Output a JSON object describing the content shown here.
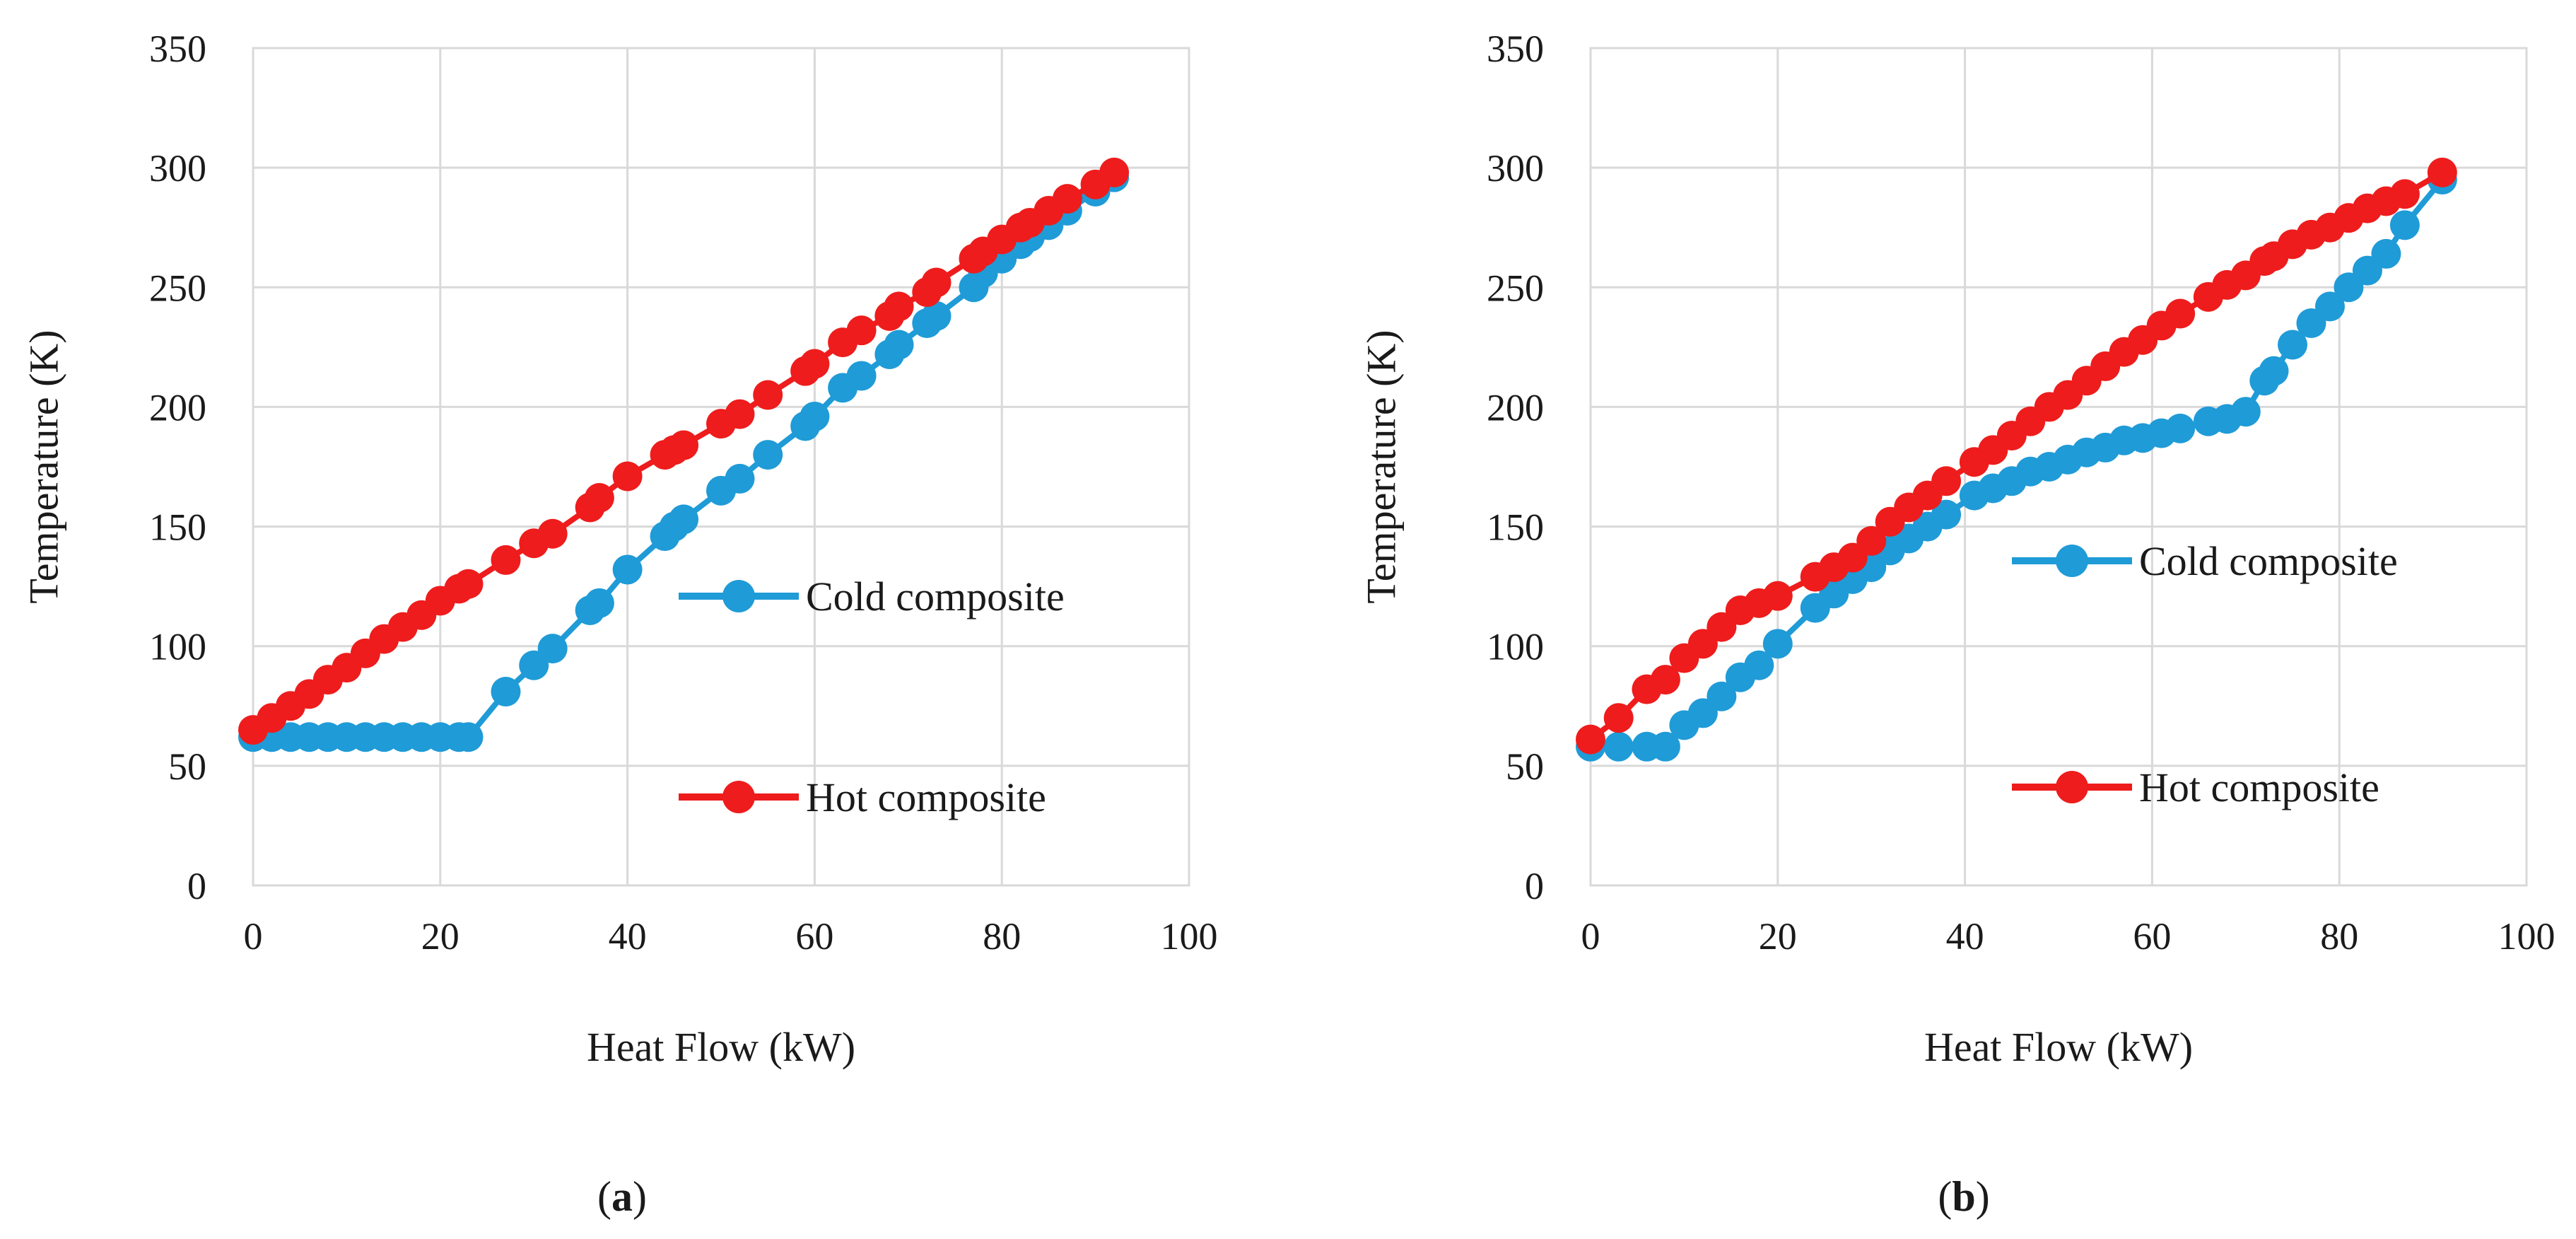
{
  "chart_data": [
    {
      "type": "line",
      "panel_label_prefix": "(",
      "panel_letter": "a",
      "panel_label_suffix": ")",
      "xlabel": "Heat Flow (kW)",
      "ylabel": "Temperature (K)",
      "xlim": [
        0,
        100
      ],
      "ylim": [
        0,
        350
      ],
      "xticks": [
        "0",
        "20",
        "40",
        "60",
        "80",
        "100"
      ],
      "yticks": [
        "0",
        "50",
        "100",
        "150",
        "200",
        "250",
        "300",
        "350"
      ],
      "grid": true,
      "legend": "right, mid-height (stacked, gap between entries)",
      "series": [
        {
          "name": "Cold composite",
          "color": "#1f9bd7",
          "x": [
            0,
            2,
            4,
            6,
            8,
            10,
            12,
            14,
            16,
            18,
            20,
            22,
            23,
            27,
            30,
            32,
            36,
            37,
            40,
            44,
            45,
            46,
            50,
            52,
            55,
            59,
            60,
            63,
            65,
            68,
            69,
            72,
            73,
            77,
            78,
            80,
            82,
            83,
            85,
            87,
            90,
            92
          ],
          "y": [
            62,
            62,
            62,
            62,
            62,
            62,
            62,
            62,
            62,
            62,
            62,
            62,
            62,
            81,
            92,
            99,
            115,
            118,
            132,
            146,
            150,
            153,
            165,
            170,
            180,
            192,
            196,
            208,
            213,
            222,
            226,
            235,
            238,
            250,
            256,
            262,
            268,
            271,
            276,
            282,
            290,
            296
          ]
        },
        {
          "name": "Hot composite",
          "color": "#ee1c1c",
          "x": [
            0,
            2,
            4,
            6,
            8,
            10,
            12,
            14,
            16,
            18,
            20,
            22,
            23,
            27,
            30,
            32,
            36,
            37,
            40,
            44,
            45,
            46,
            50,
            52,
            55,
            59,
            60,
            63,
            65,
            68,
            69,
            72,
            73,
            77,
            78,
            80,
            82,
            83,
            85,
            87,
            90,
            92
          ],
          "y": [
            65,
            70,
            75,
            80,
            86,
            91,
            97,
            103,
            108,
            113,
            119,
            124,
            126,
            136,
            143,
            147,
            158,
            162,
            171,
            180,
            182,
            184,
            193,
            197,
            205,
            215,
            218,
            227,
            232,
            238,
            242,
            248,
            252,
            262,
            265,
            270,
            275,
            277,
            282,
            287,
            293,
            298
          ]
        }
      ]
    },
    {
      "type": "line",
      "panel_label_prefix": "(",
      "panel_letter": "b",
      "panel_label_suffix": ")",
      "xlabel": "Heat Flow (kW)",
      "ylabel": "Temperature (K)",
      "xlim": [
        0,
        100
      ],
      "ylim": [
        0,
        350
      ],
      "xticks": [
        "0",
        "20",
        "40",
        "60",
        "80",
        "100"
      ],
      "yticks": [
        "0",
        "50",
        "100",
        "150",
        "200",
        "250",
        "300",
        "350"
      ],
      "grid": true,
      "legend": "right, mid-height (stacked, gap between entries)",
      "series": [
        {
          "name": "Cold composite",
          "color": "#1f9bd7",
          "x": [
            0,
            3,
            6,
            8,
            10,
            12,
            14,
            16,
            18,
            20,
            24,
            26,
            28,
            30,
            32,
            34,
            36,
            38,
            41,
            43,
            45,
            47,
            49,
            51,
            53,
            55,
            57,
            59,
            61,
            63,
            66,
            68,
            70,
            72,
            73,
            75,
            77,
            79,
            81,
            83,
            85,
            87,
            91
          ],
          "y": [
            58,
            58,
            58,
            58,
            67,
            72,
            79,
            87,
            92,
            101,
            116,
            122,
            128,
            133,
            140,
            145,
            150,
            155,
            163,
            166,
            169,
            173,
            175,
            178,
            181,
            183,
            186,
            187,
            189,
            191,
            194,
            195,
            198,
            211,
            215,
            226,
            235,
            242,
            250,
            257,
            264,
            276,
            295
          ]
        },
        {
          "name": "Hot composite",
          "color": "#ee1c1c",
          "x": [
            0,
            3,
            6,
            8,
            10,
            12,
            14,
            16,
            18,
            20,
            24,
            26,
            28,
            30,
            32,
            34,
            36,
            38,
            41,
            43,
            45,
            47,
            49,
            51,
            53,
            55,
            57,
            59,
            61,
            63,
            66,
            68,
            70,
            72,
            73,
            75,
            77,
            79,
            81,
            83,
            85,
            87,
            91
          ],
          "y": [
            61,
            70,
            82,
            86,
            95,
            101,
            108,
            115,
            118,
            121,
            129,
            133,
            137,
            144,
            152,
            158,
            163,
            169,
            177,
            182,
            188,
            194,
            200,
            205,
            211,
            217,
            223,
            228,
            234,
            239,
            246,
            251,
            255,
            261,
            263,
            268,
            272,
            275,
            279,
            283,
            286,
            289,
            298
          ]
        }
      ]
    }
  ]
}
